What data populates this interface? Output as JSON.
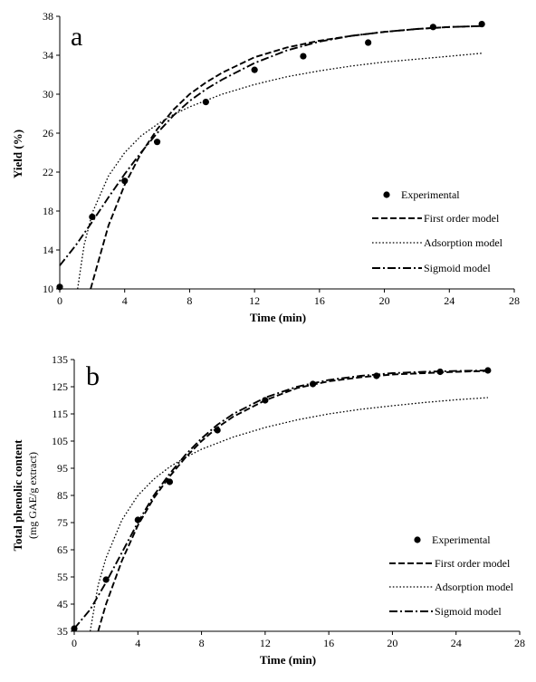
{
  "chart_data": [
    {
      "type": "scatter",
      "panel_label": "a",
      "xlabel": "Time (min)",
      "ylabel": "Yield (%)",
      "xlim": [
        0,
        28
      ],
      "ylim": [
        10,
        38
      ],
      "xticks": [
        0,
        4,
        8,
        12,
        16,
        20,
        24,
        28
      ],
      "yticks": [
        10,
        14,
        18,
        22,
        26,
        30,
        34,
        38
      ],
      "grid": false,
      "legend_position": "bottom-right",
      "series": [
        {
          "name": "Experimental",
          "style": "marker",
          "x": [
            0,
            2,
            4,
            6,
            9,
            12,
            15,
            19,
            23,
            26
          ],
          "y": [
            10.2,
            17.4,
            21.1,
            25.1,
            29.2,
            32.5,
            33.9,
            35.3,
            36.9,
            37.2
          ]
        },
        {
          "name": "First order model",
          "style": "dashed",
          "x": [
            1.9,
            3,
            4,
            5,
            6,
            7,
            8,
            9,
            10,
            12,
            14,
            16,
            18,
            20,
            22,
            24,
            26
          ],
          "y": [
            10,
            16.5,
            20.7,
            23.9,
            26.4,
            28.4,
            30.0,
            31.2,
            32.2,
            33.8,
            34.8,
            35.5,
            36.0,
            36.4,
            36.7,
            36.9,
            37.0
          ]
        },
        {
          "name": "Adsorption model",
          "style": "dotted",
          "x": [
            1.1,
            1.5,
            2,
            3,
            4,
            5,
            6,
            7,
            8,
            10,
            12,
            14,
            16,
            18,
            20,
            22,
            24,
            26
          ],
          "y": [
            10,
            14.5,
            17.8,
            21.6,
            24.0,
            25.7,
            26.9,
            27.9,
            28.7,
            30.0,
            31.0,
            31.8,
            32.4,
            32.9,
            33.3,
            33.6,
            33.9,
            34.2
          ]
        },
        {
          "name": "Sigmoid model",
          "style": "dashdot",
          "x": [
            0,
            1,
            2,
            3,
            4,
            5,
            6,
            7,
            8,
            9,
            10,
            12,
            14,
            16,
            18,
            20,
            22,
            24,
            26
          ],
          "y": [
            12.4,
            14.5,
            16.9,
            19.4,
            21.8,
            24.0,
            26.0,
            27.8,
            29.3,
            30.5,
            31.5,
            33.2,
            34.5,
            35.4,
            36.0,
            36.4,
            36.7,
            36.9,
            37.0
          ]
        }
      ]
    },
    {
      "type": "scatter",
      "panel_label": "b",
      "xlabel": "Time (min)",
      "ylabel": "Total phenolic content",
      "ylabel_unit": "(mg GAE/g extract)",
      "xlim": [
        0,
        28
      ],
      "ylim": [
        35,
        135
      ],
      "xticks": [
        0,
        4,
        8,
        12,
        16,
        20,
        24,
        28
      ],
      "yticks": [
        35,
        45,
        55,
        65,
        75,
        85,
        95,
        105,
        115,
        125,
        135
      ],
      "grid": false,
      "legend_position": "bottom-right",
      "series": [
        {
          "name": "Experimental",
          "style": "marker",
          "x": [
            0,
            2,
            4,
            6,
            9,
            12,
            15,
            19,
            23,
            26
          ],
          "y": [
            36,
            54,
            76,
            90,
            109,
            120,
            126,
            129,
            130.5,
            131
          ]
        },
        {
          "name": "First order model",
          "style": "dashed",
          "x": [
            1.5,
            2,
            3,
            4,
            5,
            6,
            7,
            8,
            9,
            10,
            12,
            14,
            16,
            18,
            20,
            22,
            24,
            26
          ],
          "y": [
            35,
            45,
            61,
            74,
            84,
            92,
            99,
            105,
            110,
            114,
            120,
            124.5,
            127,
            128.5,
            129.5,
            130,
            130.5,
            130.8
          ]
        },
        {
          "name": "Adsorption model",
          "style": "dotted",
          "x": [
            1.0,
            1.5,
            2,
            3,
            4,
            5,
            6,
            7,
            8,
            10,
            12,
            14,
            16,
            18,
            20,
            22,
            24,
            26
          ],
          "y": [
            35,
            52,
            62,
            76,
            85,
            91,
            95.5,
            99,
            102,
            106.5,
            110,
            112.8,
            115,
            116.7,
            118,
            119.2,
            120.2,
            121
          ]
        },
        {
          "name": "Sigmoid model",
          "style": "dashdot",
          "x": [
            0,
            1,
            2,
            3,
            4,
            5,
            6,
            7,
            8,
            9,
            10,
            12,
            14,
            16,
            18,
            20,
            22,
            24,
            26
          ],
          "y": [
            36,
            43,
            53,
            64,
            75,
            85,
            93,
            100,
            106,
            111,
            115,
            121,
            125,
            127.5,
            129,
            130,
            130.5,
            130.8,
            131
          ]
        }
      ]
    }
  ]
}
